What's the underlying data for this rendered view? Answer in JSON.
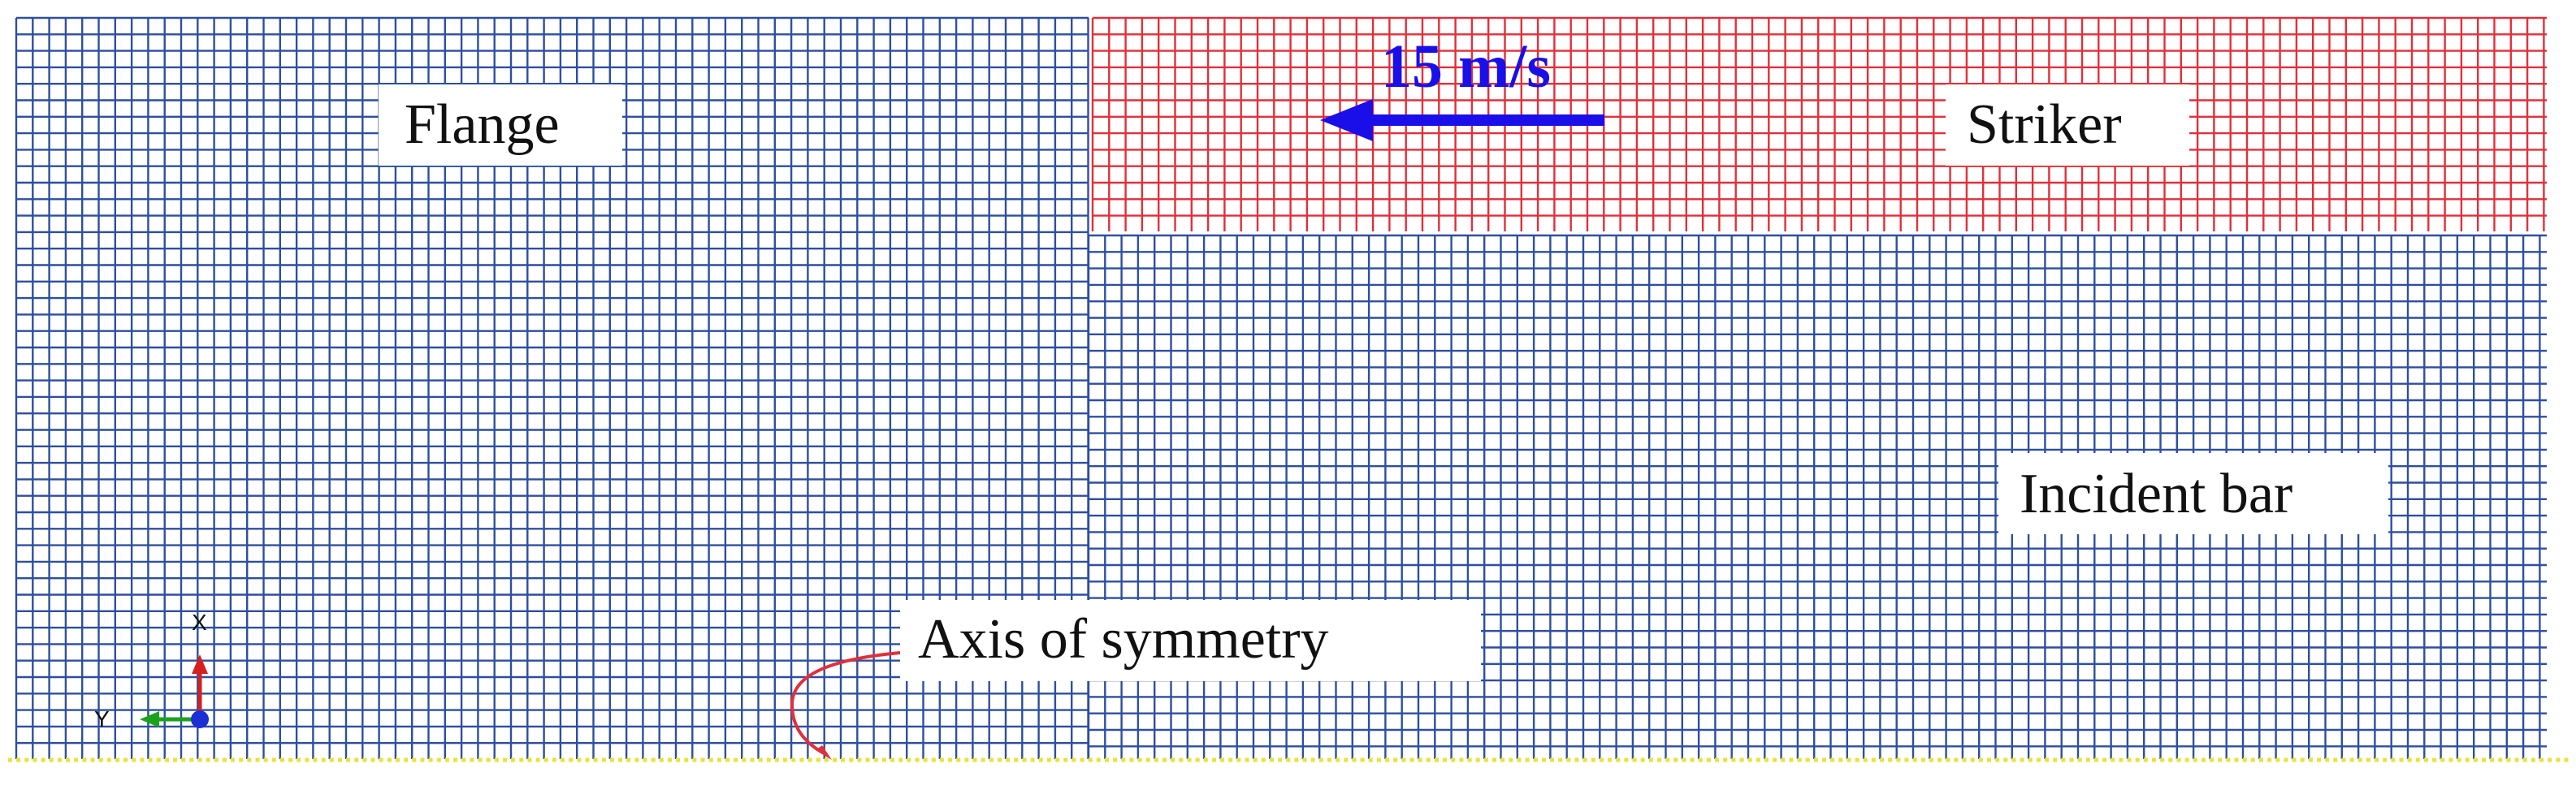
{
  "labels": {
    "flange": "Flange",
    "striker": "Striker",
    "incident_bar": "Incident bar",
    "axis_of_symmetry": "Axis of symmetry",
    "velocity": "15 m/s"
  },
  "triad": {
    "x": "X",
    "y": "Y"
  },
  "colors": {
    "bar_mesh": "#2d4f9e",
    "striker_mesh": "#e0303a",
    "velocity_arrow": "#1a0fe8",
    "leader_line": "#e0303a",
    "symmetry_nodes": "#e8e23a",
    "triad_x": "#d42020",
    "triad_y": "#1aa31a",
    "triad_z": "#1a2fd4"
  }
}
